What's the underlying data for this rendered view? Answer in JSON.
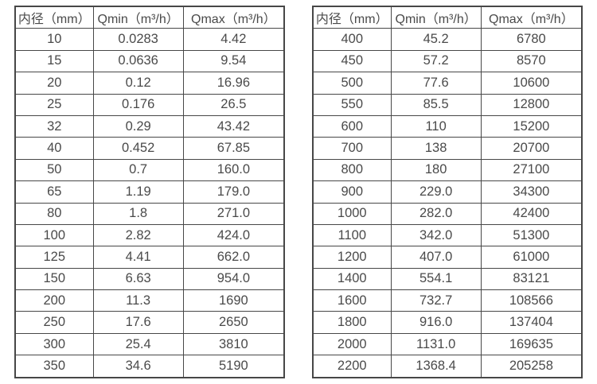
{
  "accent_colors": {
    "border": "#474747",
    "text": "#4a4a4a",
    "background": "#ffffff"
  },
  "tables": [
    {
      "name": "flow-spec-small-diameters",
      "headers": [
        "内径（mm）",
        "Qmin（m³/h）",
        "Qmax（m³/h）"
      ],
      "rows": [
        [
          "10",
          "0.0283",
          "4.42"
        ],
        [
          "15",
          "0.0636",
          "9.54"
        ],
        [
          "20",
          "0.12",
          "16.96"
        ],
        [
          "25",
          "0.176",
          "26.5"
        ],
        [
          "32",
          "0.29",
          "43.42"
        ],
        [
          "40",
          "0.452",
          "67.85"
        ],
        [
          "50",
          "0.7",
          "160.0"
        ],
        [
          "65",
          "1.19",
          "179.0"
        ],
        [
          "80",
          "1.8",
          "271.0"
        ],
        [
          "100",
          "2.82",
          "424.0"
        ],
        [
          "125",
          "4.41",
          "662.0"
        ],
        [
          "150",
          "6.63",
          "954.0"
        ],
        [
          "200",
          "11.3",
          "1690"
        ],
        [
          "250",
          "17.6",
          "2650"
        ],
        [
          "300",
          "25.4",
          "3810"
        ],
        [
          "350",
          "34.6",
          "5190"
        ]
      ]
    },
    {
      "name": "flow-spec-large-diameters",
      "headers": [
        "内径（mm）",
        "Qmin（m³/h）",
        "Qmax（m³/h）"
      ],
      "rows": [
        [
          "400",
          "45.2",
          "6780"
        ],
        [
          "450",
          "57.2",
          "8570"
        ],
        [
          "500",
          "77.6",
          "10600"
        ],
        [
          "550",
          "85.5",
          "12800"
        ],
        [
          "600",
          "110",
          "15200"
        ],
        [
          "700",
          "138",
          "20700"
        ],
        [
          "800",
          "180",
          "27100"
        ],
        [
          "900",
          "229.0",
          "34300"
        ],
        [
          "1000",
          "282.0",
          "42400"
        ],
        [
          "1100",
          "342.0",
          "51300"
        ],
        [
          "1200",
          "407.0",
          "61000"
        ],
        [
          "1400",
          "554.1",
          "83121"
        ],
        [
          "1600",
          "732.7",
          "108566"
        ],
        [
          "1800",
          "916.0",
          "137404"
        ],
        [
          "2000",
          "1131.0",
          "169635"
        ],
        [
          "2200",
          "1368.4",
          "205258"
        ]
      ]
    }
  ]
}
